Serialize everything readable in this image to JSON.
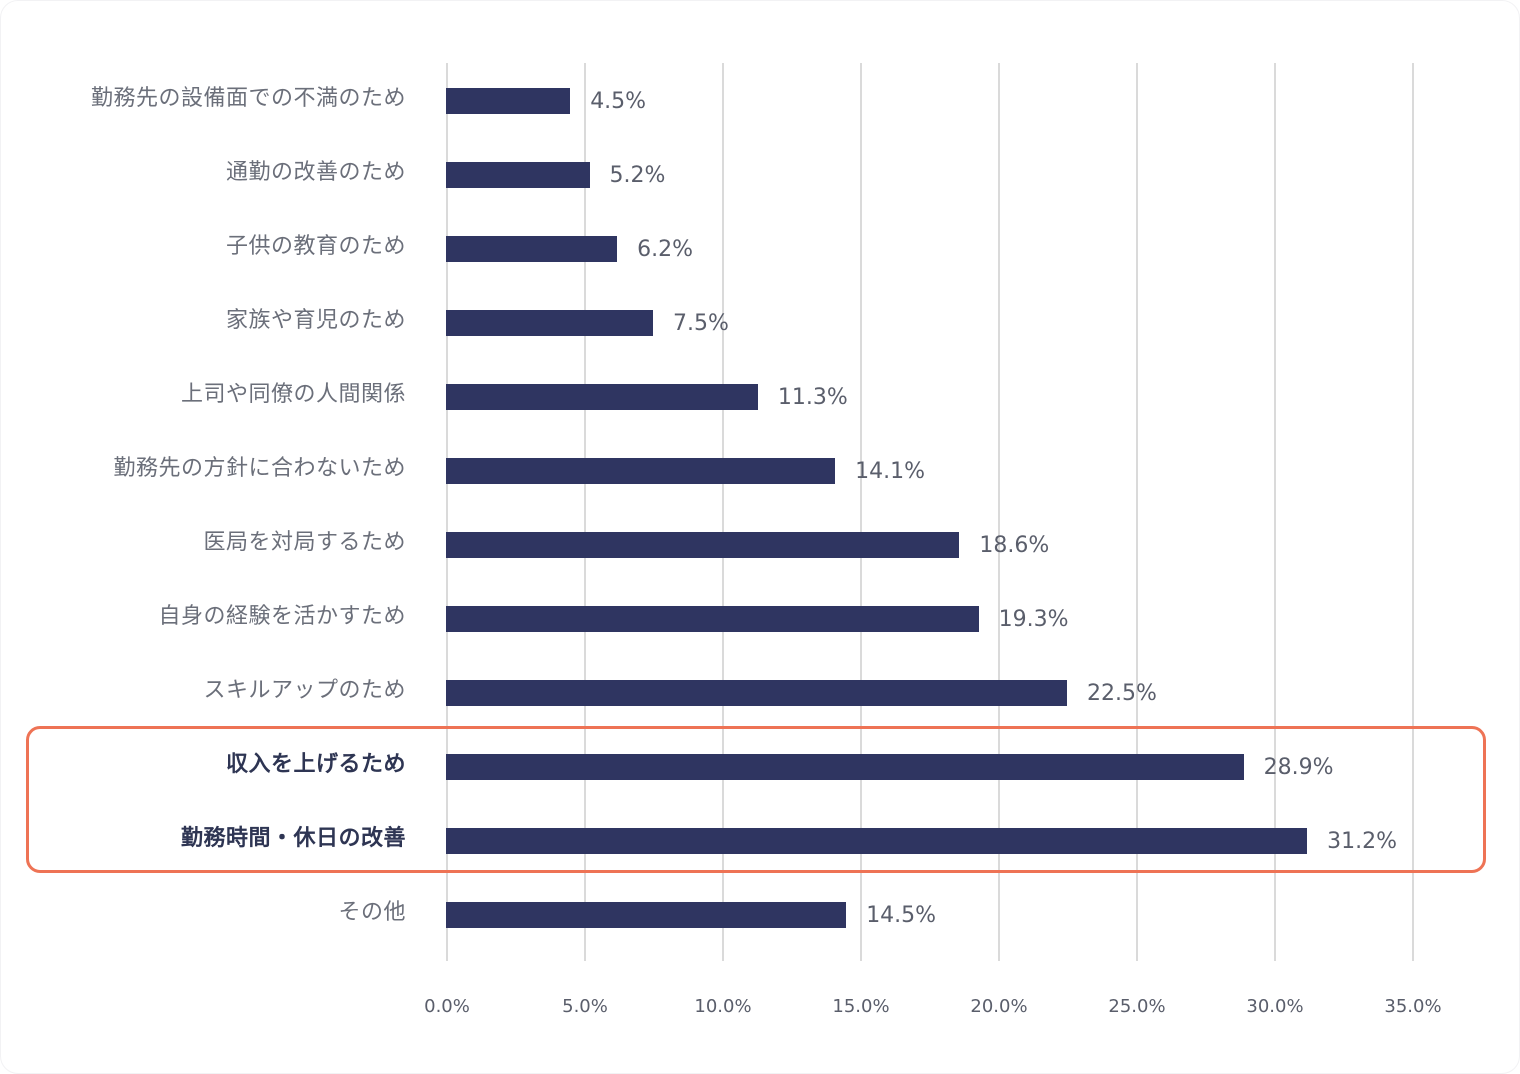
{
  "chart_data": {
    "type": "bar",
    "orientation": "horizontal",
    "title": "",
    "xlabel": "",
    "ylabel": "",
    "xlim": [
      0,
      35
    ],
    "grid": true,
    "x_ticks": [
      "0.0%",
      "5.0%",
      "10.0%",
      "15.0%",
      "20.0%",
      "25.0%",
      "30.0%",
      "35.0%"
    ],
    "categories": [
      "勤務先の設備面での不満のため",
      "通勤の改善のため",
      "子供の教育のため",
      "家族や育児のため",
      "上司や同僚の人間関係",
      "勤務先の方針に合わないため",
      "医局を対局するため",
      "自身の経験を活かすため",
      "スキルアップのため",
      "収入を上げるため",
      "勤務時間・休日の改善",
      "その他"
    ],
    "values": [
      4.5,
      5.2,
      6.2,
      7.5,
      11.3,
      14.1,
      18.6,
      19.3,
      22.5,
      28.9,
      31.2,
      14.5
    ],
    "value_labels": [
      "4.5%",
      "5.2%",
      "6.2%",
      "7.5%",
      "11.3%",
      "14.1%",
      "18.6%",
      "19.3%",
      "22.5%",
      "28.9%",
      "31.2%",
      "14.5%"
    ],
    "highlighted": [
      "収入を上げるため",
      "勤務時間・休日の改善"
    ],
    "colors": {
      "bar": "#2f3561",
      "highlight_border": "#ee7355",
      "grid": "#dadada"
    }
  }
}
